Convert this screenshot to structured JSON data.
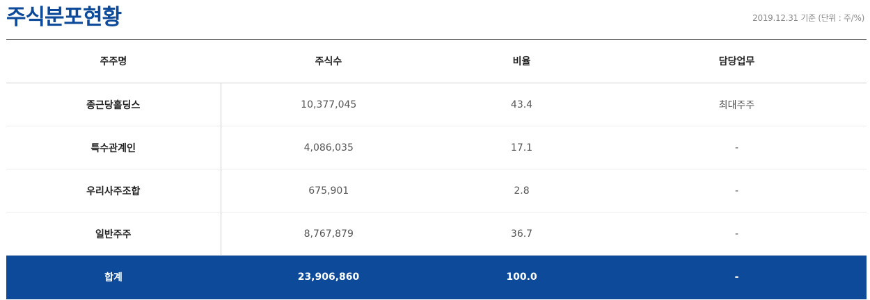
{
  "header": {
    "title": "주식분포현황",
    "basis_note": "2019.12.31 기준 (단위 : 주/%)"
  },
  "table": {
    "columns": [
      "주주명",
      "주식수",
      "비율",
      "담당업무"
    ],
    "rows": [
      {
        "holder": "종근당홀딩스",
        "shares": "10,377,045",
        "ratio": "43.4",
        "role": "최대주주"
      },
      {
        "holder": "특수관계인",
        "shares": "4,086,035",
        "ratio": "17.1",
        "role": "-"
      },
      {
        "holder": "우리사주조합",
        "shares": "675,901",
        "ratio": "2.8",
        "role": "-"
      },
      {
        "holder": "일반주주",
        "shares": "8,767,879",
        "ratio": "36.7",
        "role": "-"
      }
    ],
    "total": {
      "label": "합계",
      "shares": "23,906,860",
      "ratio": "100.0",
      "role": "-"
    }
  },
  "colors": {
    "brand_blue": "#0d4a9a",
    "text_dark": "#222222",
    "text_muted": "#555555",
    "note_gray": "#8a8a8a"
  }
}
